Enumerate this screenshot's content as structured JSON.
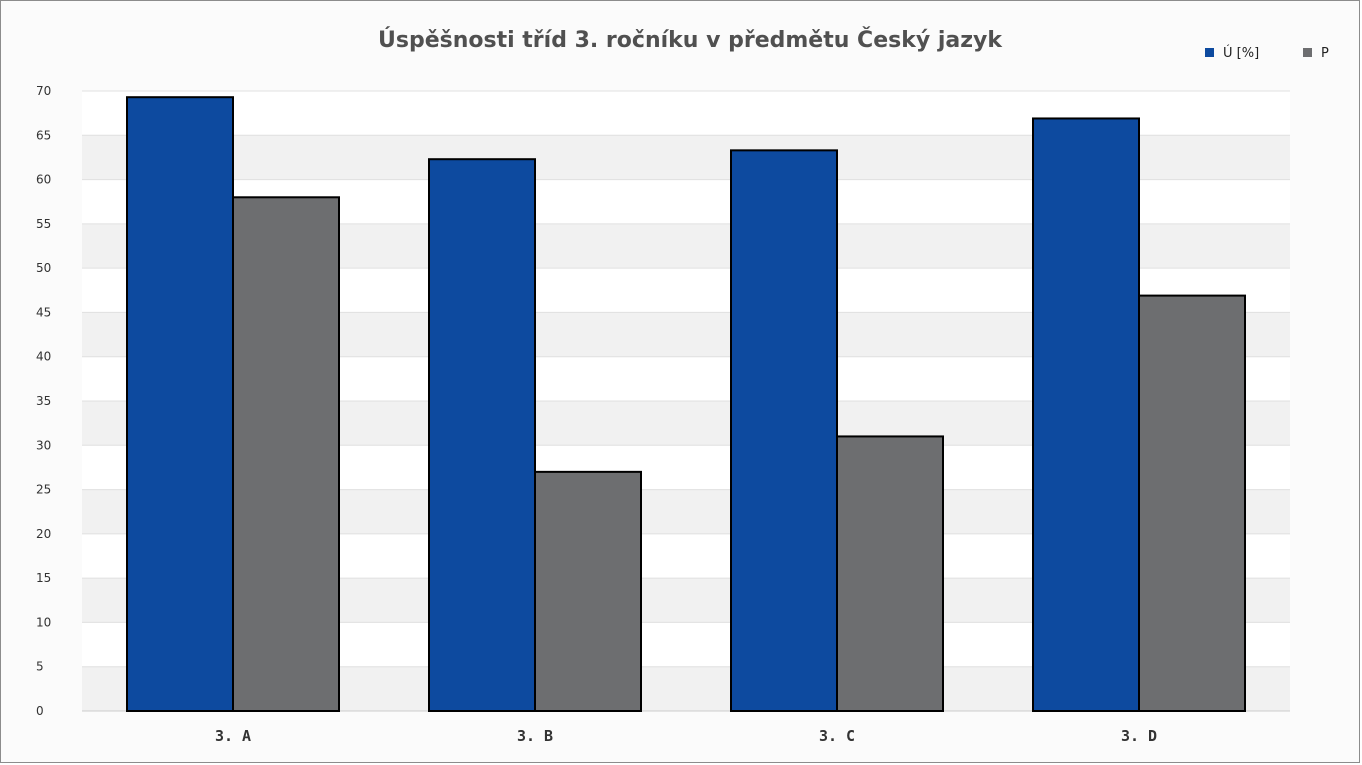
{
  "chart_data": {
    "type": "bar",
    "title": "Úspěšnosti tříd 3. ročníku v předmětu Český jazyk",
    "categories": [
      "3. A",
      "3. B",
      "3. C",
      "3. D"
    ],
    "series": [
      {
        "name": "Ú [%]",
        "color": "#0d4a9f",
        "values": [
          69.3,
          62.3,
          63.3,
          66.9
        ]
      },
      {
        "name": "P",
        "color": "#6d6e70",
        "values": [
          58.0,
          27.0,
          31.0,
          46.9
        ]
      }
    ],
    "ylim": [
      0,
      70
    ],
    "yticks": [
      0,
      5,
      10,
      15,
      20,
      25,
      30,
      35,
      40,
      45,
      50,
      55,
      60,
      65,
      70
    ],
    "xlabel": "",
    "ylabel": "",
    "grid": true,
    "legend_position": "top-right",
    "bar_outline_color": "#000000"
  }
}
